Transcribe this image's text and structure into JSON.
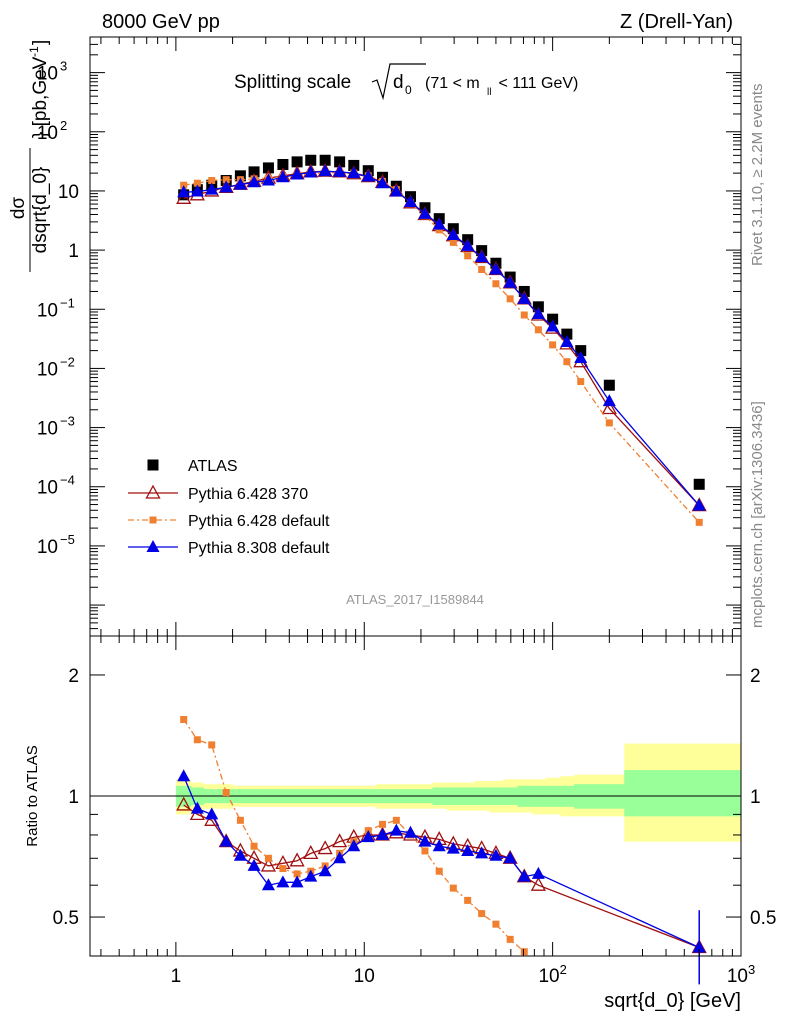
{
  "header": {
    "left": "8000 GeV pp",
    "right": "Z (Drell-Yan)"
  },
  "side_labels": {
    "rivet": "Rivet 3.1.10, ≥ 2.2M events",
    "mcplots": "mcplots.cern.ch [arXiv:1306.3436]"
  },
  "watermark": "ATLAS_2017_I1589844",
  "chart_data": [
    {
      "type": "scatter",
      "panel": "main",
      "title": "Splitting scale √d₀ (71 < m_ll < 111 GeV)",
      "title_main": "Splitting scale",
      "title_symbol": "d",
      "title_sub": "0",
      "title_range": "(71 < m",
      "title_range_sub": "ll",
      "title_range_end": " < 111 GeV)",
      "ylabel": "dσ / dsqrt{d_0} [pb,GeV⁻¹]",
      "ylabel_num": "dσ",
      "ylabel_den": "dsqrt{d_0}",
      "ylabel_unit": "} [pb,GeV",
      "ylabel_unit_sup": "-1",
      "ylabel_unit_end": "]",
      "xscale": "log",
      "yscale": "log",
      "xlim": [
        0.35,
        1000
      ],
      "ylim": [
        3e-07,
        4000
      ],
      "grid": false,
      "legend_position": "lower-left",
      "y_ticks": [
        {
          "value": 1000,
          "base": "10",
          "exp": "3"
        },
        {
          "value": 100,
          "base": "10",
          "exp": "2"
        },
        {
          "value": 10,
          "base": "10",
          "exp": ""
        },
        {
          "value": 1,
          "base": "1",
          "exp": ""
        },
        {
          "value": 0.1,
          "base": "10",
          "exp": "−1"
        },
        {
          "value": 0.01,
          "base": "10",
          "exp": "−2"
        },
        {
          "value": 0.001,
          "base": "10",
          "exp": "−3"
        },
        {
          "value": 0.0001,
          "base": "10",
          "exp": "−4"
        },
        {
          "value": 1e-05,
          "base": "10",
          "exp": "−5"
        }
      ],
      "series": [
        {
          "name": "ATLAS",
          "color": "#000000",
          "marker": "square",
          "x": [
            1.1,
            1.3,
            1.55,
            1.85,
            2.2,
            2.6,
            3.1,
            3.7,
            4.4,
            5.2,
            6.2,
            7.4,
            8.8,
            10.5,
            12.5,
            14.8,
            17.6,
            21,
            25,
            29.7,
            35.4,
            42,
            50,
            59.5,
            70.7,
            84,
            100,
            119,
            141,
            200,
            600
          ],
          "y": [
            8.6,
            10.5,
            12.5,
            15,
            18,
            21,
            24.5,
            28,
            31,
            33,
            33,
            31,
            27,
            22,
            17,
            12,
            8,
            5.2,
            3.4,
            2.3,
            1.5,
            0.98,
            0.6,
            0.35,
            0.2,
            0.11,
            0.068,
            0.038,
            0.02,
            0.0052,
            0.00011
          ]
        },
        {
          "name": "Pythia 6.428 370",
          "color": "#a01010",
          "marker": "open-triangle",
          "x": [
            1.1,
            1.3,
            1.55,
            1.85,
            2.2,
            2.6,
            3.1,
            3.7,
            4.4,
            5.2,
            6.2,
            7.4,
            8.8,
            10.5,
            12.5,
            14.8,
            17.6,
            21,
            25,
            29.7,
            35.4,
            42,
            50,
            59.5,
            70.7,
            84,
            100,
            119,
            141,
            200,
            600
          ],
          "y": [
            7.5,
            8.6,
            10,
            11.5,
            13,
            14.5,
            16.5,
            18,
            19.5,
            21,
            21.5,
            21,
            19.5,
            17.5,
            14,
            10,
            6.3,
            4,
            2.6,
            1.75,
            1.15,
            0.75,
            0.47,
            0.28,
            0.15,
            0.08,
            0.048,
            0.026,
            0.013,
            0.0021,
            4.8e-05
          ]
        },
        {
          "name": "Pythia 6.428 default",
          "color": "#f07f30",
          "marker": "square",
          "x": [
            1.1,
            1.3,
            1.55,
            1.85,
            2.2,
            2.6,
            3.1,
            3.7,
            4.4,
            5.2,
            6.2,
            7.4,
            8.8,
            10.5,
            12.5,
            14.8,
            17.6,
            21,
            25,
            29.7,
            35.4,
            42,
            50,
            59.5,
            70.7,
            84,
            100,
            119,
            141,
            200,
            600
          ],
          "y": [
            12.5,
            13.5,
            15,
            15.5,
            15.5,
            16,
            16.5,
            17.5,
            18.5,
            19.5,
            20,
            20.5,
            20,
            18,
            14.5,
            10.5,
            6.3,
            3.8,
            2.2,
            1.35,
            0.8,
            0.47,
            0.27,
            0.15,
            0.08,
            0.045,
            0.025,
            0.013,
            0.006,
            0.0012,
            2.5e-05
          ]
        },
        {
          "name": "Pythia 8.308 default",
          "color": "#0000e6",
          "marker": "filled-triangle",
          "x": [
            1.1,
            1.3,
            1.55,
            1.85,
            2.2,
            2.6,
            3.1,
            3.7,
            4.4,
            5.2,
            6.2,
            7.4,
            8.8,
            10.5,
            12.5,
            14.8,
            17.6,
            21,
            25,
            29.7,
            35.4,
            42,
            50,
            59.5,
            70.7,
            84,
            100,
            119,
            141,
            200,
            600
          ],
          "y": [
            9.5,
            9.8,
            10.5,
            11.5,
            12.8,
            14,
            15,
            17,
            19,
            20.5,
            21.5,
            21,
            20,
            17.5,
            13.5,
            9.8,
            6.5,
            4.1,
            2.7,
            1.8,
            1.18,
            0.76,
            0.47,
            0.28,
            0.15,
            0.083,
            0.051,
            0.028,
            0.015,
            0.0028,
            4.8e-05
          ]
        }
      ]
    },
    {
      "type": "scatter",
      "panel": "ratio",
      "ylabel": "Ratio to ATLAS",
      "xlabel": "sqrt{d_0} [GeV]",
      "xscale": "log",
      "yscale": "log",
      "xlim": [
        0.35,
        1000
      ],
      "ylim": [
        0.4,
        2.5
      ],
      "y_ticks": [
        {
          "value": 0.5,
          "label": "0.5"
        },
        {
          "value": 1,
          "label": "1"
        },
        {
          "value": 2,
          "label": "2"
        }
      ],
      "x_ticks": [
        {
          "value": 1,
          "base": "1",
          "exp": ""
        },
        {
          "value": 10,
          "base": "10",
          "exp": ""
        },
        {
          "value": 100,
          "base": "10",
          "exp": "2"
        },
        {
          "value": 1000,
          "base": "10",
          "exp": "3"
        }
      ],
      "reference_line": 1,
      "uncertainty_bands": {
        "x_edges": [
          1,
          1.2,
          1.4,
          1.7,
          2,
          2.4,
          2.8,
          3.4,
          4,
          4.8,
          5.7,
          6.8,
          8.1,
          9.6,
          11.5,
          13.6,
          16.2,
          19.3,
          23,
          27.3,
          32.5,
          38.7,
          46,
          54.7,
          65,
          77.4,
          92,
          110,
          130,
          240,
          1000
        ],
        "yellow_low": [
          0.9,
          0.92,
          0.93,
          0.93,
          0.94,
          0.94,
          0.94,
          0.94,
          0.94,
          0.94,
          0.94,
          0.94,
          0.94,
          0.94,
          0.93,
          0.93,
          0.93,
          0.93,
          0.93,
          0.92,
          0.92,
          0.92,
          0.91,
          0.91,
          0.91,
          0.9,
          0.9,
          0.89,
          0.89,
          0.77
        ],
        "yellow_high": [
          1.1,
          1.08,
          1.07,
          1.07,
          1.06,
          1.06,
          1.06,
          1.06,
          1.06,
          1.06,
          1.06,
          1.06,
          1.06,
          1.06,
          1.07,
          1.07,
          1.07,
          1.07,
          1.08,
          1.08,
          1.08,
          1.09,
          1.09,
          1.1,
          1.1,
          1.1,
          1.11,
          1.12,
          1.13,
          1.35
        ],
        "green_low": [
          0.94,
          0.95,
          0.96,
          0.96,
          0.96,
          0.96,
          0.96,
          0.96,
          0.96,
          0.96,
          0.96,
          0.96,
          0.96,
          0.96,
          0.96,
          0.96,
          0.96,
          0.96,
          0.95,
          0.95,
          0.95,
          0.95,
          0.95,
          0.95,
          0.94,
          0.94,
          0.94,
          0.94,
          0.93,
          0.89
        ],
        "green_high": [
          1.06,
          1.05,
          1.04,
          1.04,
          1.04,
          1.04,
          1.04,
          1.04,
          1.04,
          1.04,
          1.04,
          1.04,
          1.04,
          1.04,
          1.04,
          1.04,
          1.04,
          1.04,
          1.05,
          1.05,
          1.05,
          1.05,
          1.05,
          1.05,
          1.06,
          1.06,
          1.06,
          1.06,
          1.07,
          1.16
        ],
        "yellow_color": "#ffff99",
        "green_color": "#99ff99"
      },
      "series": [
        {
          "name": "Pythia 6.428 370",
          "color": "#a01010",
          "marker": "open-triangle",
          "x": [
            1.1,
            1.3,
            1.55,
            1.85,
            2.2,
            2.6,
            3.1,
            3.7,
            4.4,
            5.2,
            6.2,
            7.4,
            8.8,
            10.5,
            12.5,
            14.8,
            17.6,
            21,
            25,
            29.7,
            35.4,
            42,
            50,
            59.5,
            70.7,
            84,
            600
          ],
          "y": [
            0.95,
            0.9,
            0.87,
            0.77,
            0.73,
            0.7,
            0.67,
            0.68,
            0.69,
            0.72,
            0.74,
            0.77,
            0.79,
            0.8,
            0.8,
            0.81,
            0.8,
            0.79,
            0.78,
            0.76,
            0.75,
            0.74,
            0.72,
            0.7,
            0.63,
            0.6,
            0.42
          ]
        },
        {
          "name": "Pythia 6.428 default",
          "color": "#f07f30",
          "marker": "square",
          "x": [
            1.1,
            1.3,
            1.55,
            1.85,
            2.2,
            2.6,
            3.1,
            3.7,
            4.4,
            5.2,
            6.2,
            7.4,
            8.8,
            10.5,
            12.5,
            14.8,
            17.6,
            21,
            25,
            29.7,
            35.4,
            42,
            50,
            59.5,
            70.7
          ],
          "y": [
            1.55,
            1.38,
            1.34,
            1.02,
            0.87,
            0.75,
            0.7,
            0.66,
            0.64,
            0.65,
            0.67,
            0.72,
            0.77,
            0.82,
            0.85,
            0.87,
            0.8,
            0.73,
            0.65,
            0.59,
            0.55,
            0.51,
            0.48,
            0.44,
            0.41
          ]
        },
        {
          "name": "Pythia 8.308 default",
          "color": "#0000e6",
          "marker": "filled-triangle",
          "x": [
            1.1,
            1.3,
            1.55,
            1.85,
            2.2,
            2.6,
            3.1,
            3.7,
            4.4,
            5.2,
            6.2,
            7.4,
            8.8,
            10.5,
            12.5,
            14.8,
            17.6,
            21,
            25,
            29.7,
            35.4,
            42,
            50,
            59.5,
            70.7,
            84,
            600
          ],
          "y": [
            1.12,
            0.93,
            0.9,
            0.77,
            0.71,
            0.67,
            0.6,
            0.61,
            0.61,
            0.63,
            0.65,
            0.7,
            0.75,
            0.79,
            0.8,
            0.82,
            0.81,
            0.77,
            0.75,
            0.74,
            0.73,
            0.72,
            0.71,
            0.7,
            0.63,
            0.64,
            0.42
          ],
          "err_last": [
            0.34,
            0.52
          ]
        }
      ]
    }
  ]
}
